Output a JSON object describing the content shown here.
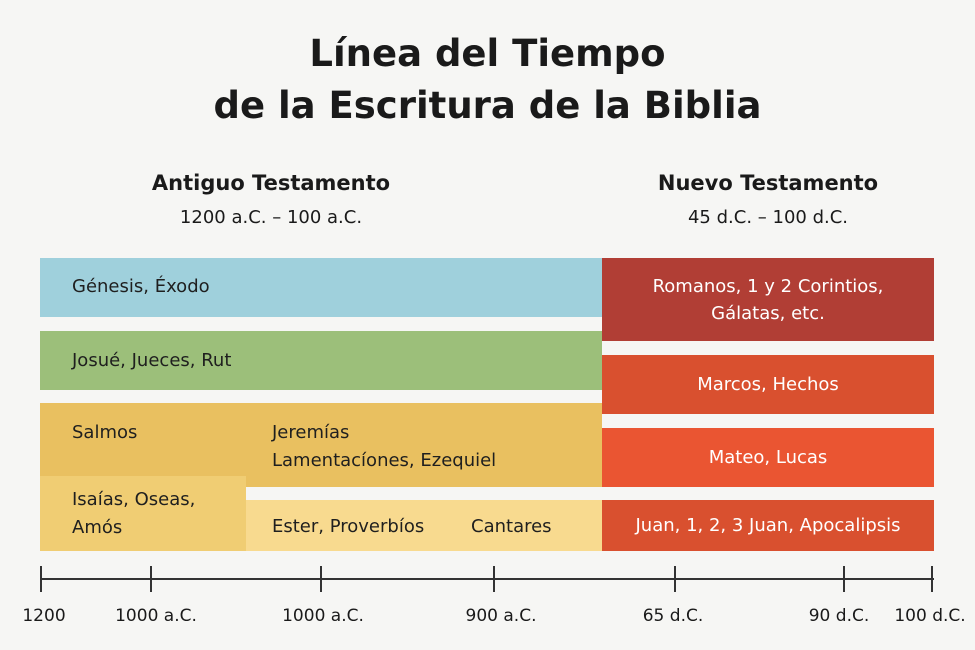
{
  "title": {
    "line1": "Línea del Tiempo",
    "line2": "de la Escritura de la Biblia"
  },
  "old_testament": {
    "name": "Antiguo Testamento",
    "range": "1200 a.C. – 100 a.C."
  },
  "new_testament": {
    "name": "Nuevo Testamento",
    "range": "45 d.C. – 100 d.C."
  },
  "ot_bars": {
    "genesis": "Génesis, Éxodo",
    "josue": "Josué, Jueces, Rut",
    "salmos": "Salmos",
    "jeremias_1": "Jeremías",
    "jeremias_2": "Lamentacíones, Ezequiel",
    "isaias_1": "Isaías, Oseas,",
    "isaias_2": "Amós",
    "ester": "Ester, Proverbíos",
    "cantares": "Cantares"
  },
  "nt_bars": {
    "romanos_1": "Romanos, 1 y 2 Corintios,",
    "romanos_2": "Gálatas, etc.",
    "marcos": "Marcos, Hechos",
    "mateo": "Mateo, Lucas",
    "juan": "Juan, 1, 2, 3 Juan, Apocalipsis"
  },
  "axis": {
    "ticks": [
      "1200",
      "1000 a.C.",
      "1000 a.C.",
      "900 a.C.",
      "65 d.C.",
      "90 d.C.",
      "100 d.C."
    ]
  },
  "colors": {
    "blue": "#9fd0dc",
    "green": "#9cbf7a",
    "gold": "#e9c060",
    "gold_light": "#f0cd73",
    "cream": "#f8da8f",
    "dark_red": "#b13e35",
    "red_orange": "#d9502f",
    "orange": "#ea5532"
  }
}
